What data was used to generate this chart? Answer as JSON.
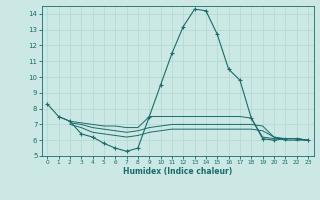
{
  "xlabel": "Humidex (Indice chaleur)",
  "xlim": [
    -0.5,
    23.5
  ],
  "ylim": [
    5,
    14.5
  ],
  "yticks": [
    5,
    6,
    7,
    8,
    9,
    10,
    11,
    12,
    13,
    14
  ],
  "xticks": [
    0,
    1,
    2,
    3,
    4,
    5,
    6,
    7,
    8,
    9,
    10,
    11,
    12,
    13,
    14,
    15,
    16,
    17,
    18,
    19,
    20,
    21,
    22,
    23
  ],
  "bg_color": "#cce8e4",
  "line_color": "#1a6b6b",
  "grid_color": "#b0d8d2",
  "curves": [
    {
      "x": [
        0,
        1,
        2,
        3,
        4,
        5,
        6,
        7,
        8,
        9,
        10,
        11,
        12,
        13,
        14,
        15,
        16,
        17,
        18,
        19,
        20,
        21,
        22,
        23
      ],
      "y": [
        8.3,
        7.5,
        7.2,
        6.4,
        6.2,
        5.8,
        5.5,
        5.3,
        5.5,
        7.5,
        9.5,
        11.5,
        13.2,
        14.3,
        14.2,
        12.7,
        10.5,
        9.8,
        7.4,
        6.1,
        6.0,
        6.1,
        6.1,
        6.0
      ],
      "marker": true
    },
    {
      "x": [
        1,
        2,
        3,
        4,
        5,
        6,
        7,
        8,
        9,
        10,
        11,
        12,
        13,
        14,
        15,
        16,
        17,
        18,
        19,
        20,
        21,
        22,
        23
      ],
      "y": [
        7.5,
        7.2,
        7.1,
        7.0,
        6.9,
        6.9,
        6.8,
        6.8,
        7.5,
        7.5,
        7.5,
        7.5,
        7.5,
        7.5,
        7.5,
        7.5,
        7.5,
        7.4,
        6.2,
        6.1,
        6.1,
        6.1,
        6.0
      ],
      "marker": false
    },
    {
      "x": [
        2,
        3,
        4,
        5,
        6,
        7,
        8,
        9,
        10,
        11,
        12,
        13,
        14,
        15,
        16,
        17,
        18,
        19,
        20,
        21,
        22,
        23
      ],
      "y": [
        7.1,
        7.0,
        6.8,
        6.7,
        6.6,
        6.5,
        6.6,
        6.8,
        6.9,
        7.0,
        7.0,
        7.0,
        7.0,
        7.0,
        7.0,
        7.0,
        7.0,
        6.9,
        6.2,
        6.1,
        6.1,
        6.0
      ],
      "marker": false
    },
    {
      "x": [
        2,
        3,
        4,
        5,
        6,
        7,
        8,
        9,
        10,
        11,
        12,
        13,
        14,
        15,
        16,
        17,
        18,
        19,
        20,
        21,
        22,
        23
      ],
      "y": [
        7.0,
        6.8,
        6.5,
        6.4,
        6.3,
        6.2,
        6.3,
        6.5,
        6.6,
        6.7,
        6.7,
        6.7,
        6.7,
        6.7,
        6.7,
        6.7,
        6.7,
        6.6,
        6.2,
        6.0,
        6.0,
        6.0
      ],
      "marker": false
    }
  ]
}
